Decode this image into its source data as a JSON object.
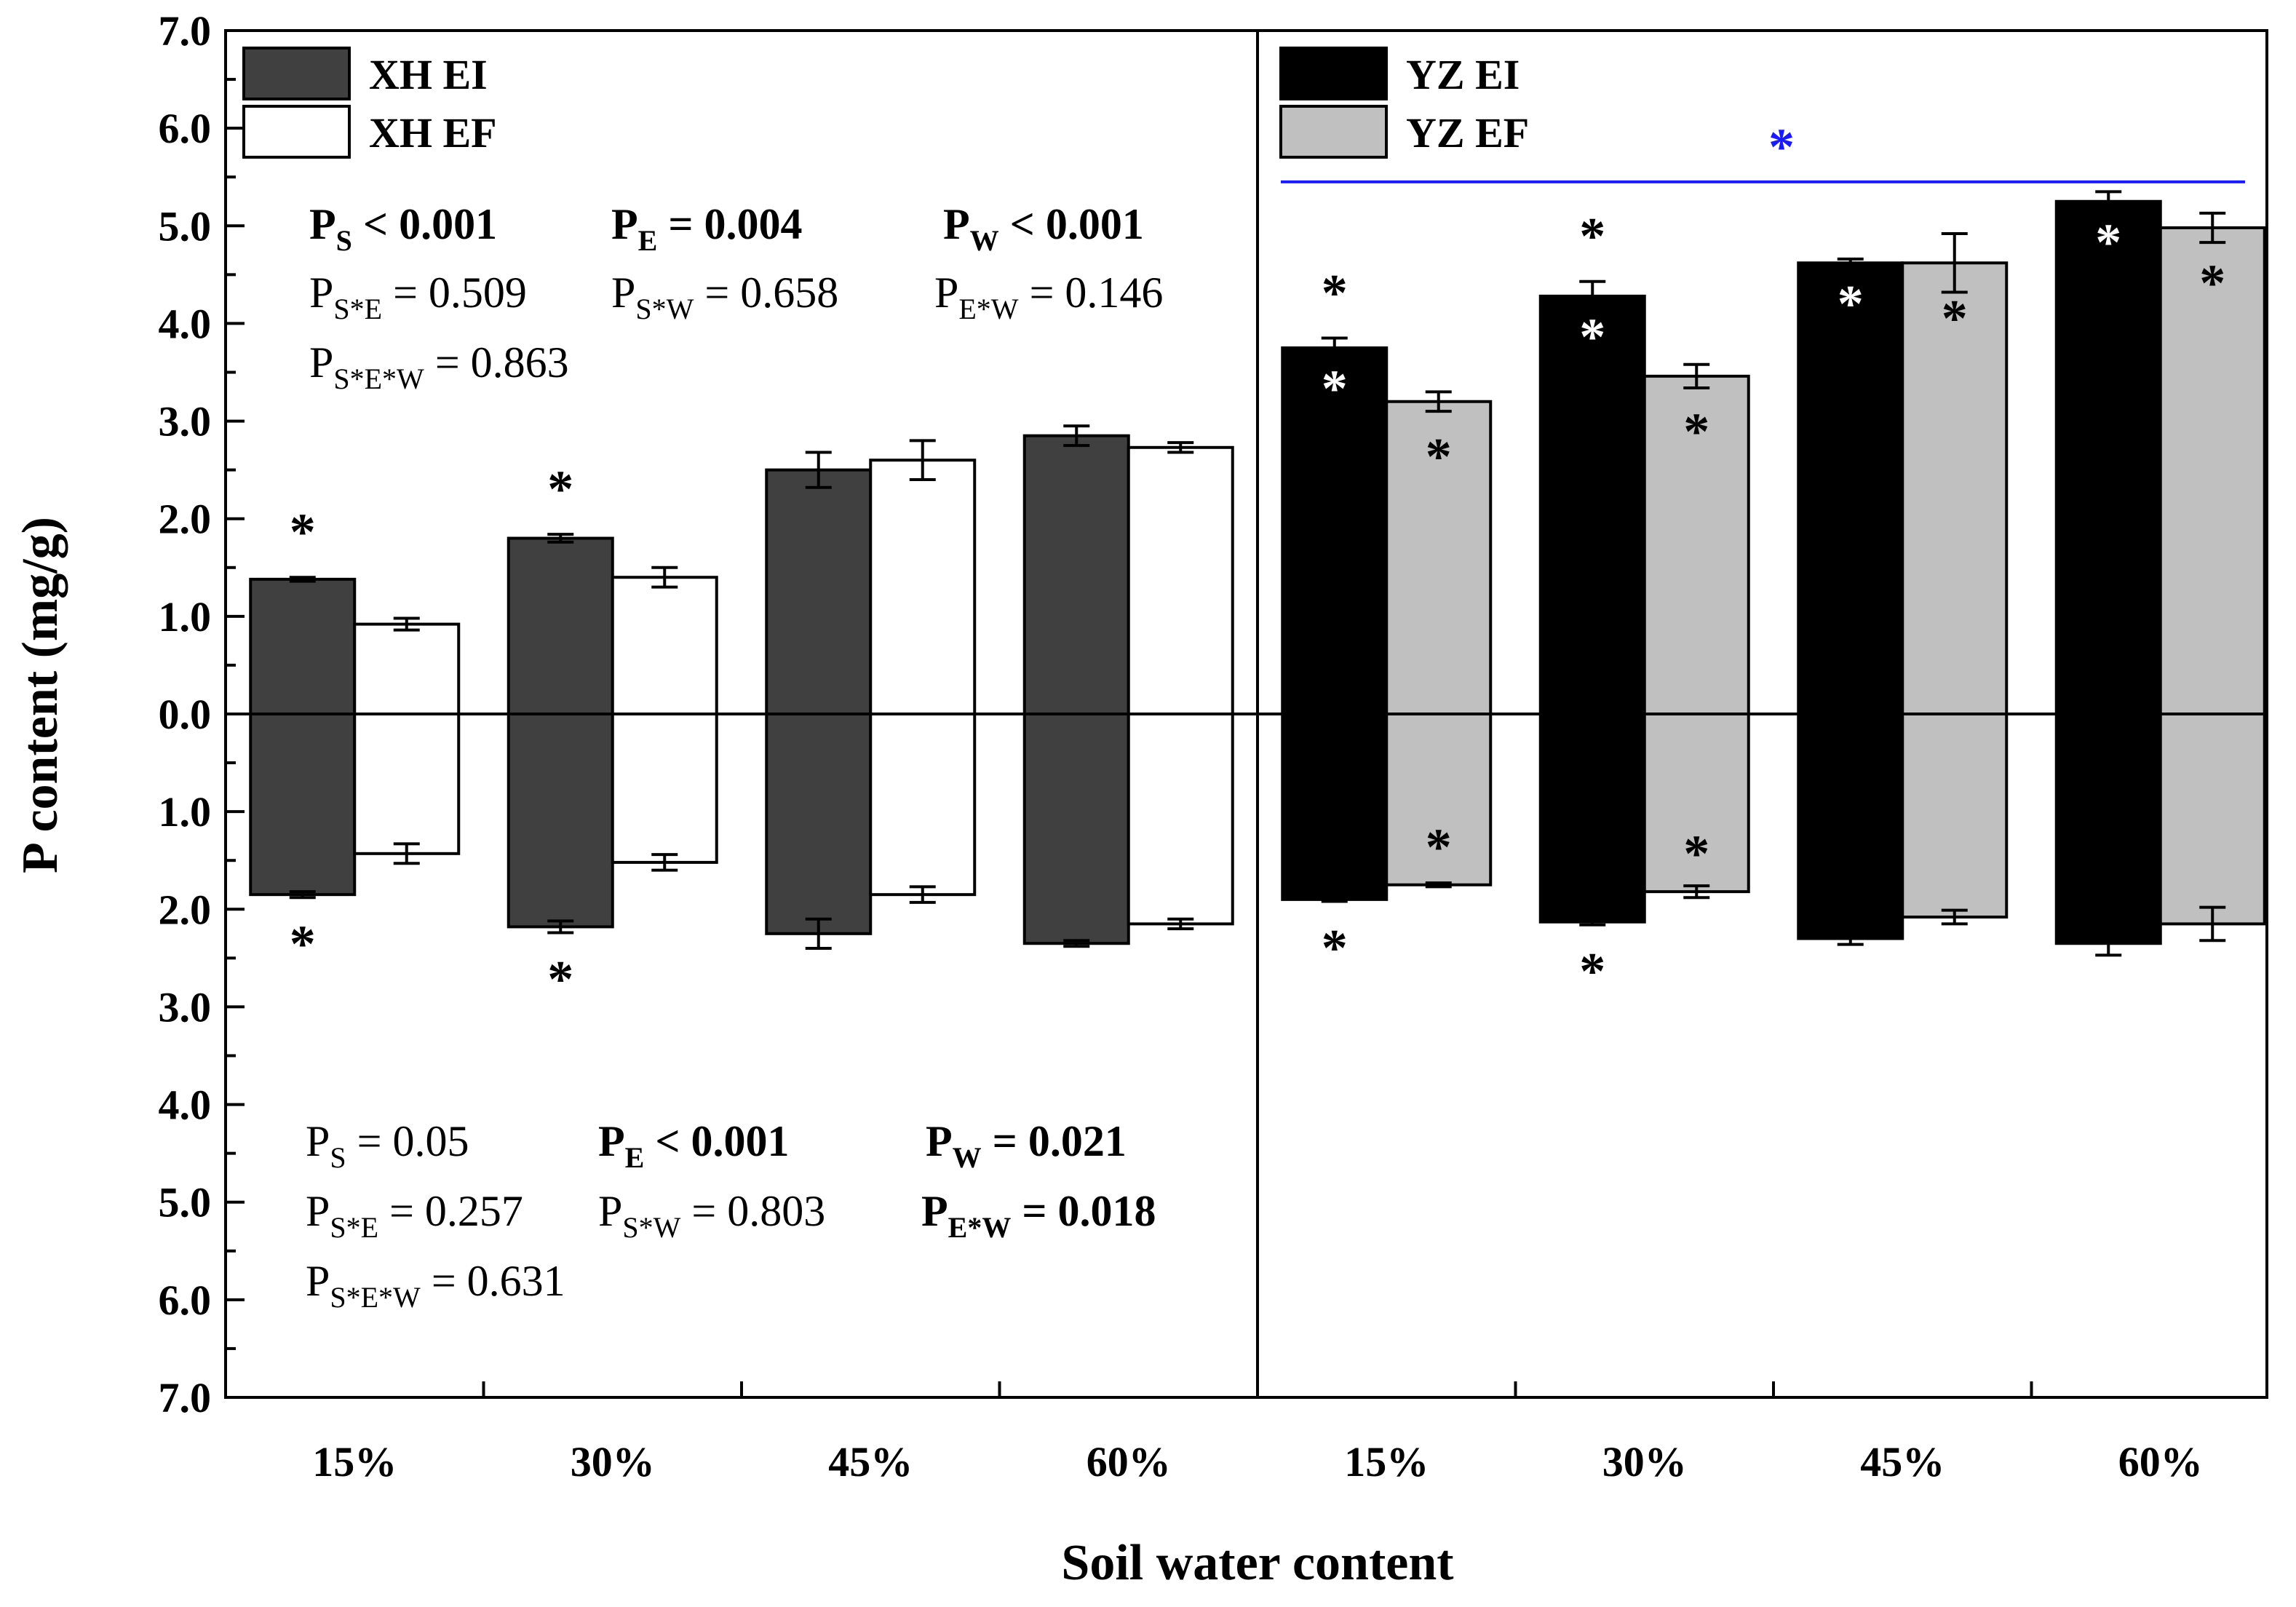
{
  "chart_data": {
    "type": "bar",
    "title": "",
    "xlabel": "Soil water content",
    "ylabel": "P content (mg/g)",
    "ylim": [
      -7,
      7
    ],
    "y_ticks": [
      {
        "value": 7,
        "label": "7.0"
      },
      {
        "value": 6,
        "label": "6.0"
      },
      {
        "value": 5,
        "label": "5.0"
      },
      {
        "value": 4,
        "label": "4.0"
      },
      {
        "value": 3,
        "label": "3.0"
      },
      {
        "value": 2,
        "label": "2.0"
      },
      {
        "value": 1,
        "label": "1.0"
      },
      {
        "value": 0,
        "label": "0.0"
      },
      {
        "value": -1,
        "label": "1.0"
      },
      {
        "value": -2,
        "label": "2.0"
      },
      {
        "value": -3,
        "label": "3.0"
      },
      {
        "value": -4,
        "label": "4.0"
      },
      {
        "value": -5,
        "label": "5.0"
      },
      {
        "value": -6,
        "label": "6.0"
      },
      {
        "value": -7,
        "label": "7.0"
      }
    ],
    "categories": [
      "15%",
      "30%",
      "45%",
      "60%",
      "15%",
      "30%",
      "45%",
      "60%"
    ],
    "panels": [
      {
        "name": "XH",
        "series": [
          {
            "name": "XH EI",
            "color": "#404040",
            "above": [
              1.38,
              1.8,
              2.5,
              2.85
            ],
            "above_err": [
              0.02,
              0.04,
              0.18,
              0.1
            ],
            "below": [
              1.85,
              2.18,
              2.25,
              2.35
            ],
            "below_err": [
              0.03,
              0.06,
              0.15,
              0.03
            ],
            "sig_above": [
              "*",
              "*",
              "",
              ""
            ],
            "sig_below": [
              "*",
              "*",
              "",
              ""
            ]
          },
          {
            "name": "XH EF",
            "color": "#ffffff",
            "above": [
              0.92,
              1.4,
              2.6,
              2.73
            ],
            "above_err": [
              0.06,
              0.1,
              0.2,
              0.05
            ],
            "below": [
              1.43,
              1.52,
              1.85,
              2.15
            ],
            "below_err": [
              0.1,
              0.08,
              0.08,
              0.05
            ],
            "sig_above": [
              "",
              "",
              "",
              ""
            ],
            "sig_below": [
              "",
              "",
              "",
              ""
            ]
          }
        ]
      },
      {
        "name": "YZ",
        "series": [
          {
            "name": "YZ EI",
            "color": "#000000",
            "above": [
              3.75,
              4.28,
              4.62,
              5.25
            ],
            "above_err": [
              0.1,
              0.15,
              0.04,
              0.1
            ],
            "below": [
              1.9,
              2.13,
              2.3,
              2.35
            ],
            "below_err": [
              0.02,
              0.03,
              0.06,
              0.12
            ],
            "sig_above": [
              "*",
              "*",
              "",
              ""
            ],
            "sig_below": [
              "*",
              "*",
              "",
              ""
            ],
            "sig_in_above": [
              "*",
              "*",
              "*",
              "*"
            ],
            "sig_in_below": [
              "",
              "",
              "",
              ""
            ]
          },
          {
            "name": "YZ EF",
            "color": "#c0c0c0",
            "above": [
              3.2,
              3.46,
              4.62,
              4.98
            ],
            "above_err": [
              0.1,
              0.12,
              0.3,
              0.15
            ],
            "below": [
              1.75,
              1.82,
              2.08,
              2.15
            ],
            "below_err": [
              0.02,
              0.06,
              0.07,
              0.17
            ],
            "sig_above": [
              "",
              "",
              "",
              ""
            ],
            "sig_below": [
              "",
              "",
              "",
              ""
            ],
            "sig_in_above": [
              "*",
              "*",
              "*",
              "*"
            ],
            "sig_in_below": [
              "*",
              "*",
              "",
              ""
            ]
          }
        ],
        "bracket": {
          "label": "*",
          "color": "#1a1aff",
          "value": 5.45
        }
      }
    ],
    "stats_top": [
      {
        "text": "P",
        "sub": "S",
        "rest": " < 0.001",
        "bold": true
      },
      {
        "text": "P",
        "sub": "E",
        "rest": " = 0.004",
        "bold": true
      },
      {
        "text": "P",
        "sub": "W",
        "rest": " < 0.001",
        "bold": true
      },
      {
        "text": "P",
        "sub": "S*E",
        "rest": " = 0.509",
        "bold": false
      },
      {
        "text": "P",
        "sub": "S*W",
        "rest": " = 0.658",
        "bold": false
      },
      {
        "text": "P",
        "sub": "E*W",
        "rest": " = 0.146",
        "bold": false
      },
      {
        "text": "P",
        "sub": "S*E*W",
        "rest": " = 0.863",
        "bold": false
      }
    ],
    "stats_bottom": [
      {
        "text": "P",
        "sub": "S",
        "rest": " = 0.05",
        "bold": false
      },
      {
        "text": "P",
        "sub": "E",
        "rest": " < 0.001",
        "bold": true
      },
      {
        "text": "P",
        "sub": "W",
        "rest": " = 0.021",
        "bold": true
      },
      {
        "text": "P",
        "sub": "S*E",
        "rest": " = 0.257",
        "bold": false
      },
      {
        "text": "P",
        "sub": "S*W",
        "rest": " = 0.803",
        "bold": false
      },
      {
        "text": "P",
        "sub": "E*W",
        "rest": " = 0.018",
        "bold": true
      },
      {
        "text": "P",
        "sub": "S*E*W",
        "rest": " = 0.631",
        "bold": false
      }
    ]
  }
}
